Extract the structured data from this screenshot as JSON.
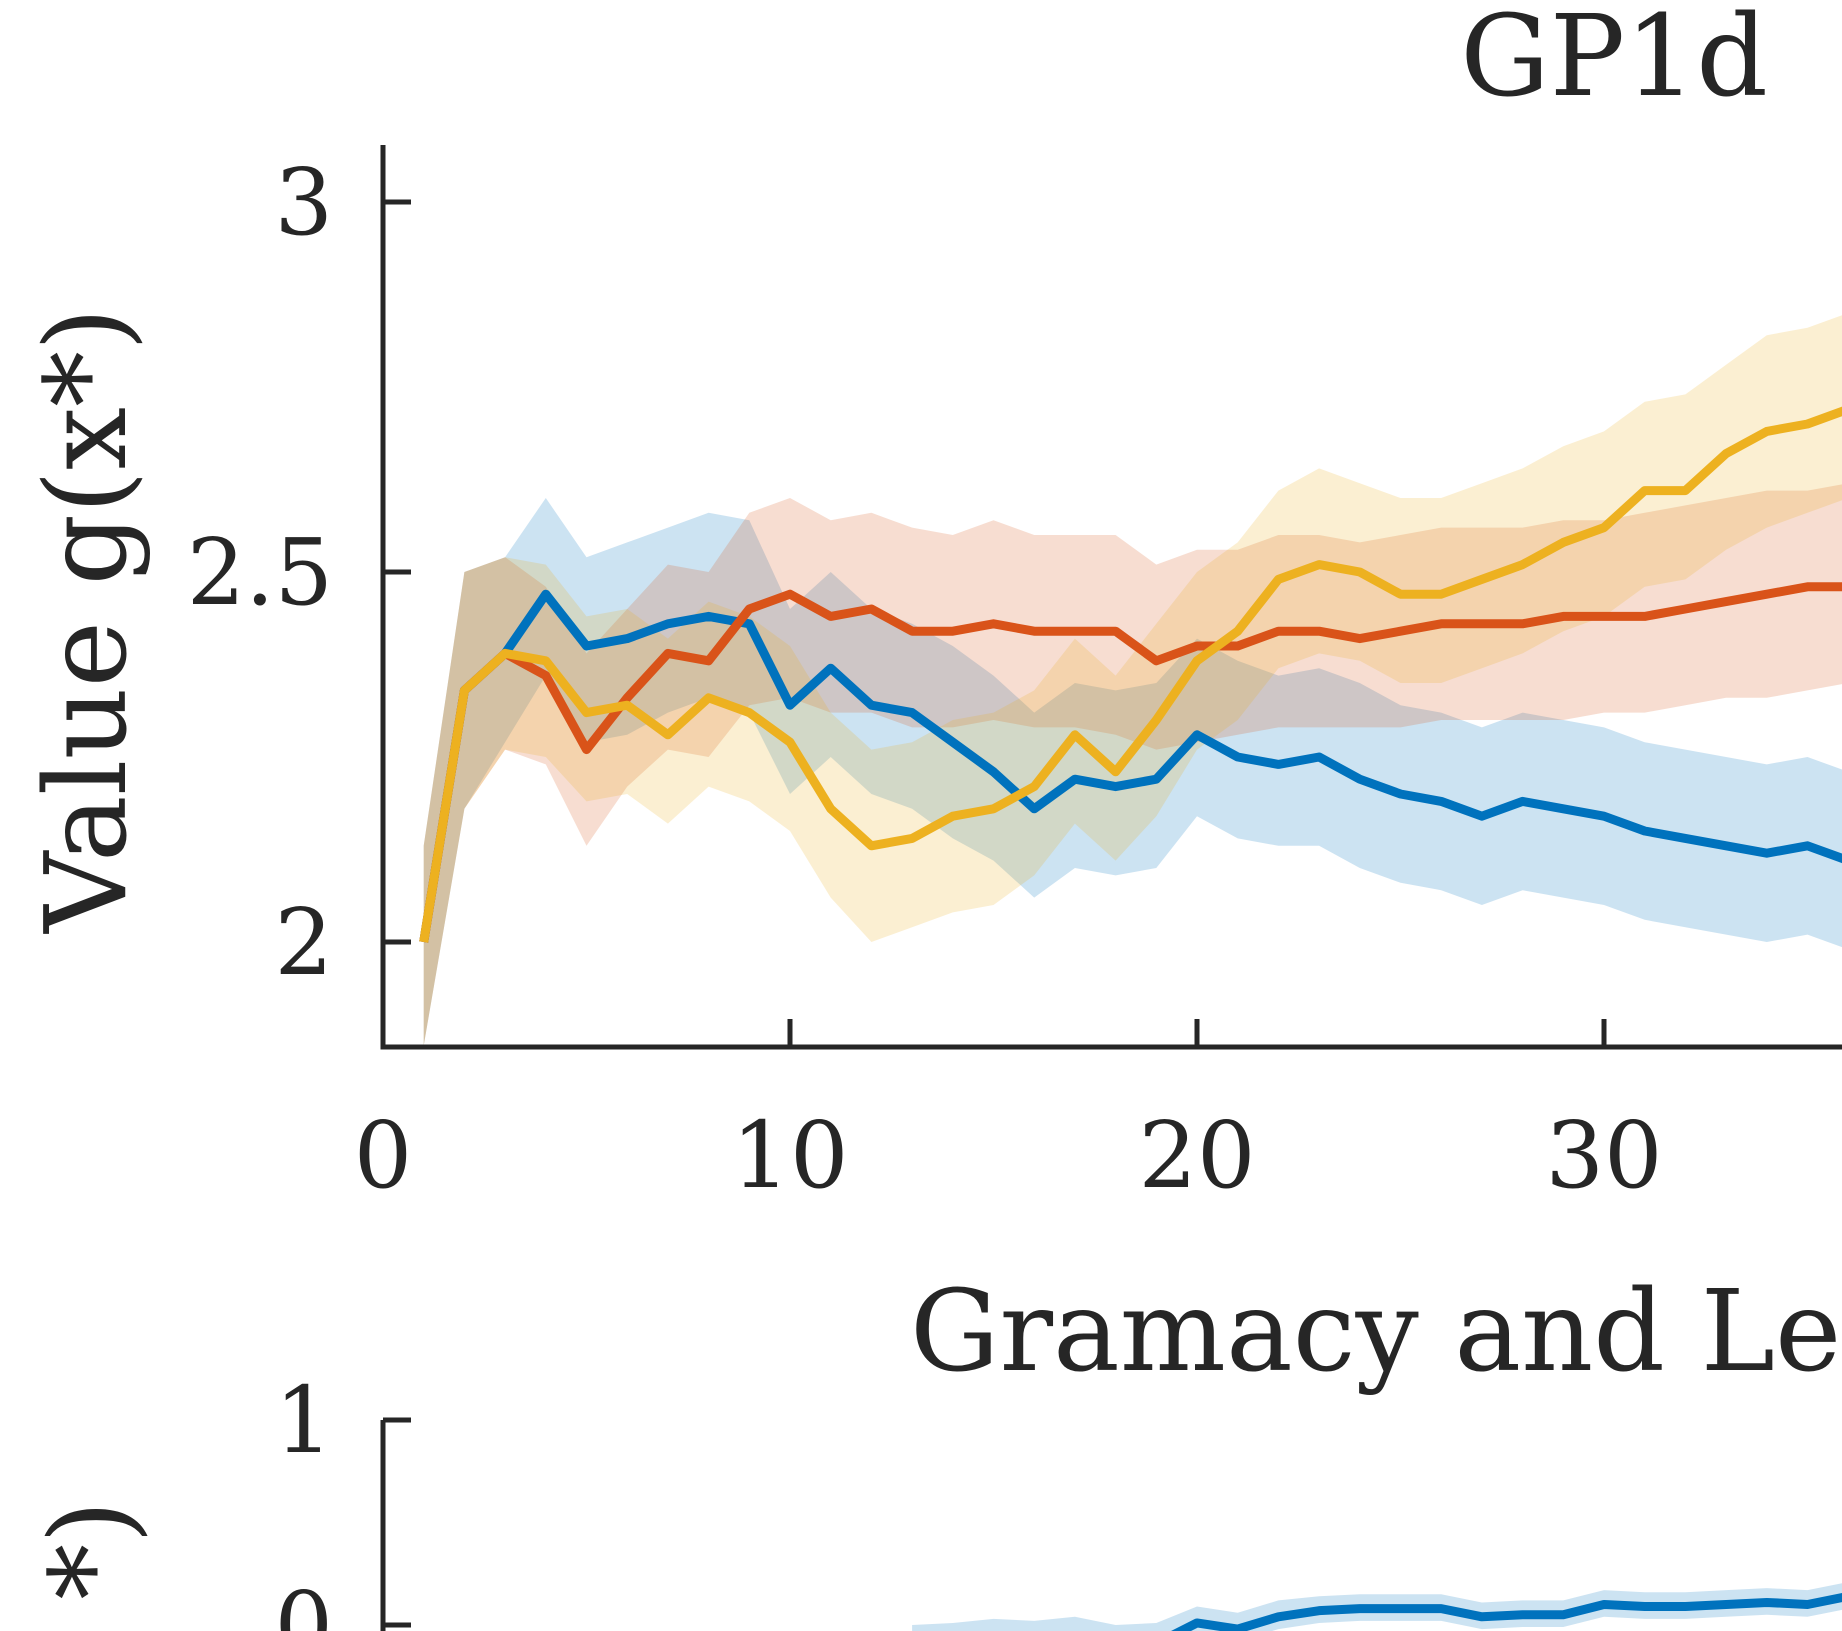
{
  "chart_data": [
    {
      "type": "line",
      "title": "GP1d",
      "xlabel": "",
      "ylabel": "Value g(x*)",
      "xlim": [
        0,
        35.8
      ],
      "ylim": [
        1.86,
        3.08
      ],
      "xticks": [
        0,
        10,
        20,
        30
      ],
      "yticks": [
        2,
        2.5,
        3
      ],
      "xtick_labels": [
        "0",
        "10",
        "20",
        "30"
      ],
      "ytick_labels": [
        "2",
        "2.5",
        "3"
      ],
      "grid": false,
      "x": [
        1,
        2,
        3,
        4,
        5,
        6,
        7,
        8,
        9,
        10,
        11,
        12,
        13,
        14,
        15,
        16,
        17,
        18,
        19,
        20,
        21,
        22,
        23,
        24,
        25,
        26,
        27,
        28,
        29,
        30,
        31,
        32,
        33,
        34,
        35,
        36
      ],
      "series": [
        {
          "color": "#0072BD",
          "values": [
            2.0,
            2.34,
            2.39,
            2.47,
            2.4,
            2.41,
            2.43,
            2.44,
            2.43,
            2.32,
            2.37,
            2.32,
            2.31,
            2.27,
            2.23,
            2.18,
            2.22,
            2.21,
            2.22,
            2.28,
            2.25,
            2.24,
            2.25,
            2.22,
            2.2,
            2.19,
            2.17,
            2.19,
            2.18,
            2.17,
            2.15,
            2.14,
            2.13,
            2.12,
            2.13,
            2.11
          ],
          "lower": [
            1.86,
            2.18,
            2.27,
            2.36,
            2.27,
            2.28,
            2.31,
            2.33,
            2.31,
            2.2,
            2.25,
            2.2,
            2.18,
            2.14,
            2.11,
            2.06,
            2.1,
            2.09,
            2.1,
            2.17,
            2.14,
            2.13,
            2.13,
            2.1,
            2.08,
            2.07,
            2.05,
            2.07,
            2.06,
            2.05,
            2.03,
            2.02,
            2.01,
            2.0,
            2.01,
            1.99
          ],
          "upper": [
            2.13,
            2.5,
            2.52,
            2.6,
            2.52,
            2.54,
            2.56,
            2.58,
            2.57,
            2.45,
            2.5,
            2.45,
            2.43,
            2.4,
            2.36,
            2.31,
            2.35,
            2.34,
            2.35,
            2.41,
            2.38,
            2.36,
            2.37,
            2.35,
            2.32,
            2.31,
            2.29,
            2.31,
            2.3,
            2.29,
            2.27,
            2.26,
            2.25,
            2.24,
            2.25,
            2.23
          ]
        },
        {
          "color": "#D95319",
          "values": [
            2.0,
            2.34,
            2.39,
            2.36,
            2.26,
            2.33,
            2.39,
            2.38,
            2.45,
            2.47,
            2.44,
            2.45,
            2.42,
            2.42,
            2.43,
            2.42,
            2.42,
            2.42,
            2.38,
            2.4,
            2.4,
            2.42,
            2.42,
            2.41,
            2.42,
            2.43,
            2.43,
            2.43,
            2.44,
            2.44,
            2.44,
            2.45,
            2.46,
            2.47,
            2.48,
            2.48
          ],
          "lower": [
            1.86,
            2.18,
            2.26,
            2.24,
            2.13,
            2.21,
            2.26,
            2.25,
            2.32,
            2.33,
            2.31,
            2.31,
            2.29,
            2.29,
            2.3,
            2.29,
            2.29,
            2.28,
            2.26,
            2.27,
            2.28,
            2.29,
            2.29,
            2.29,
            2.29,
            2.3,
            2.3,
            2.3,
            2.3,
            2.31,
            2.31,
            2.32,
            2.33,
            2.33,
            2.34,
            2.35
          ],
          "upper": [
            2.13,
            2.5,
            2.52,
            2.48,
            2.39,
            2.45,
            2.51,
            2.5,
            2.58,
            2.6,
            2.57,
            2.58,
            2.56,
            2.55,
            2.57,
            2.55,
            2.55,
            2.55,
            2.51,
            2.53,
            2.53,
            2.55,
            2.55,
            2.54,
            2.55,
            2.56,
            2.56,
            2.56,
            2.57,
            2.57,
            2.58,
            2.59,
            2.6,
            2.61,
            2.61,
            2.62
          ]
        },
        {
          "color": "#EDB120",
          "values": [
            2.0,
            2.34,
            2.39,
            2.38,
            2.31,
            2.32,
            2.28,
            2.33,
            2.31,
            2.27,
            2.18,
            2.13,
            2.14,
            2.17,
            2.18,
            2.21,
            2.28,
            2.23,
            2.3,
            2.38,
            2.42,
            2.49,
            2.51,
            2.5,
            2.47,
            2.47,
            2.49,
            2.51,
            2.54,
            2.56,
            2.61,
            2.61,
            2.66,
            2.69,
            2.7,
            2.72
          ],
          "lower": [
            1.86,
            2.18,
            2.26,
            2.25,
            2.19,
            2.2,
            2.16,
            2.21,
            2.19,
            2.15,
            2.06,
            2.0,
            2.02,
            2.04,
            2.05,
            2.09,
            2.16,
            2.11,
            2.17,
            2.26,
            2.3,
            2.37,
            2.39,
            2.38,
            2.35,
            2.35,
            2.37,
            2.39,
            2.42,
            2.44,
            2.48,
            2.49,
            2.53,
            2.56,
            2.58,
            2.6
          ],
          "upper": [
            2.13,
            2.5,
            2.52,
            2.51,
            2.44,
            2.45,
            2.41,
            2.46,
            2.44,
            2.4,
            2.31,
            2.26,
            2.27,
            2.3,
            2.31,
            2.34,
            2.41,
            2.36,
            2.43,
            2.5,
            2.54,
            2.61,
            2.64,
            2.62,
            2.6,
            2.6,
            2.62,
            2.64,
            2.67,
            2.69,
            2.73,
            2.74,
            2.78,
            2.82,
            2.83,
            2.85
          ]
        }
      ]
    },
    {
      "type": "line",
      "title": "Gramacy and Le",
      "xlabel": "",
      "ylabel": "*)",
      "ylim": [
        -0.2,
        1.0
      ],
      "yticks": [
        0,
        1
      ],
      "ytick_labels": [
        "0",
        "1"
      ],
      "grid": false,
      "x": [
        13,
        14,
        15,
        16,
        17,
        18,
        19,
        20,
        21,
        22,
        23,
        24,
        25,
        26,
        27,
        28,
        29,
        30,
        31,
        32,
        33,
        34,
        35,
        36
      ],
      "series": [
        {
          "color": "#0072BD",
          "values": [
            -0.12,
            -0.1,
            -0.08,
            -0.08,
            -0.06,
            -0.1,
            -0.09,
            0.01,
            -0.02,
            0.04,
            0.07,
            0.08,
            0.08,
            0.08,
            0.04,
            0.05,
            0.05,
            0.1,
            0.09,
            0.09,
            0.1,
            0.11,
            0.1,
            0.14
          ],
          "lower": [
            -0.18,
            -0.16,
            -0.14,
            -0.14,
            -0.12,
            -0.16,
            -0.15,
            -0.05,
            -0.08,
            -0.02,
            0.01,
            0.02,
            0.02,
            0.02,
            -0.02,
            -0.01,
            -0.01,
            0.04,
            0.03,
            0.03,
            0.04,
            0.05,
            0.04,
            0.08
          ],
          "upper": [
            0.0,
            0.01,
            0.03,
            0.02,
            0.04,
            0.0,
            0.01,
            0.09,
            0.06,
            0.12,
            0.14,
            0.15,
            0.15,
            0.15,
            0.11,
            0.12,
            0.12,
            0.17,
            0.16,
            0.16,
            0.17,
            0.18,
            0.17,
            0.21
          ]
        }
      ]
    }
  ]
}
